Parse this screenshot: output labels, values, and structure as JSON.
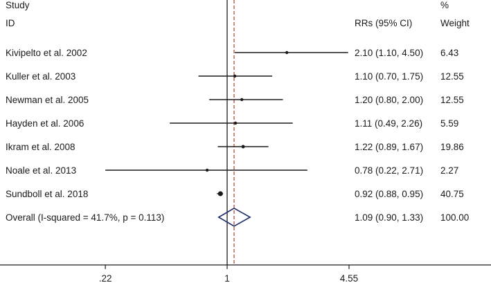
{
  "chart_data": {
    "type": "forest",
    "header": {
      "col1_line1": "Study",
      "col1_line2": "ID",
      "col2": "RRs (95% CI)",
      "col3_line1": "%",
      "col3_line2": "Weight"
    },
    "x_scale": "log",
    "x_ticks": [
      {
        "value": 0.22,
        "label": ".22"
      },
      {
        "value": 1,
        "label": "1"
      },
      {
        "value": 4.55,
        "label": "4.55"
      }
    ],
    "null_line": 1,
    "overall_line": 1.09,
    "studies": [
      {
        "id": "Kivipelto et al. 2002",
        "rr": 2.1,
        "lo": 1.1,
        "hi": 4.5,
        "ci_text": "2.10 (1.10, 4.50)",
        "weight": "6.43"
      },
      {
        "id": "Kuller et al. 2003",
        "rr": 1.1,
        "lo": 0.7,
        "hi": 1.75,
        "ci_text": "1.10 (0.70, 1.75)",
        "weight": "12.55"
      },
      {
        "id": "Newman et al. 2005",
        "rr": 1.2,
        "lo": 0.8,
        "hi": 2.0,
        "ci_text": "1.20 (0.80, 2.00)",
        "weight": "12.55"
      },
      {
        "id": "Hayden et al. 2006",
        "rr": 1.11,
        "lo": 0.49,
        "hi": 2.26,
        "ci_text": "1.11 (0.49, 2.26)",
        "weight": "5.59"
      },
      {
        "id": "Ikram et al. 2008",
        "rr": 1.22,
        "lo": 0.89,
        "hi": 1.67,
        "ci_text": "1.22 (0.89, 1.67)",
        "weight": "19.86"
      },
      {
        "id": "Noale et al. 2013",
        "rr": 0.78,
        "lo": 0.22,
        "hi": 2.71,
        "ci_text": "0.78 (0.22, 2.71)",
        "weight": "2.27"
      },
      {
        "id": "Sundboll et al. 2018",
        "rr": 0.92,
        "lo": 0.88,
        "hi": 0.95,
        "ci_text": "0.92 (0.88, 0.95)",
        "weight": "40.75"
      }
    ],
    "overall": {
      "id": "Overall  (I-squared = 41.7%, p = 0.113)",
      "rr": 1.09,
      "lo": 0.9,
      "hi": 1.33,
      "ci_text": "1.09 (0.90, 1.33)",
      "weight": "100.00"
    },
    "colors": {
      "line": "#1a1a1a",
      "diamond": "#1f2a6b",
      "overall_line": "#b03a2e"
    }
  }
}
